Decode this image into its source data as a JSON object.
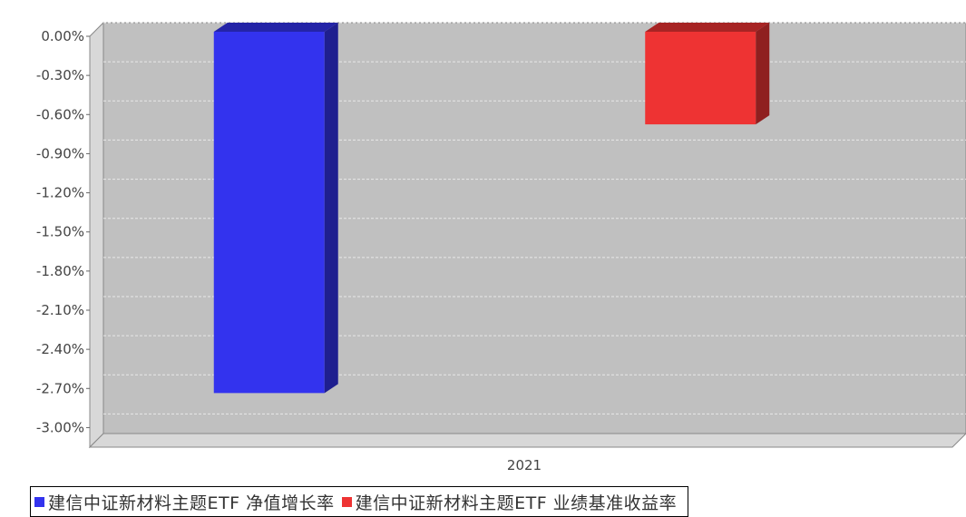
{
  "chart_data": {
    "type": "bar",
    "categories": [
      "2021"
    ],
    "series": [
      {
        "name": "建信中证新材料主题ETF 净值增长率",
        "values": [
          -2.77
        ],
        "color": "#3333ee"
      },
      {
        "name": "建信中证新材料主题ETF 业绩基准收益率",
        "values": [
          -0.71
        ],
        "color": "#ee3333"
      }
    ],
    "yticks": [
      "0.00%",
      "-0.30%",
      "-0.60%",
      "-0.90%",
      "-1.20%",
      "-1.50%",
      "-1.80%",
      "-2.10%",
      "-2.40%",
      "-2.70%",
      "-3.00%"
    ],
    "ylim": [
      -3.15,
      0.0
    ],
    "y_unit": "%",
    "grid": true,
    "legend_position": "bottom",
    "style": "3d-bar"
  }
}
